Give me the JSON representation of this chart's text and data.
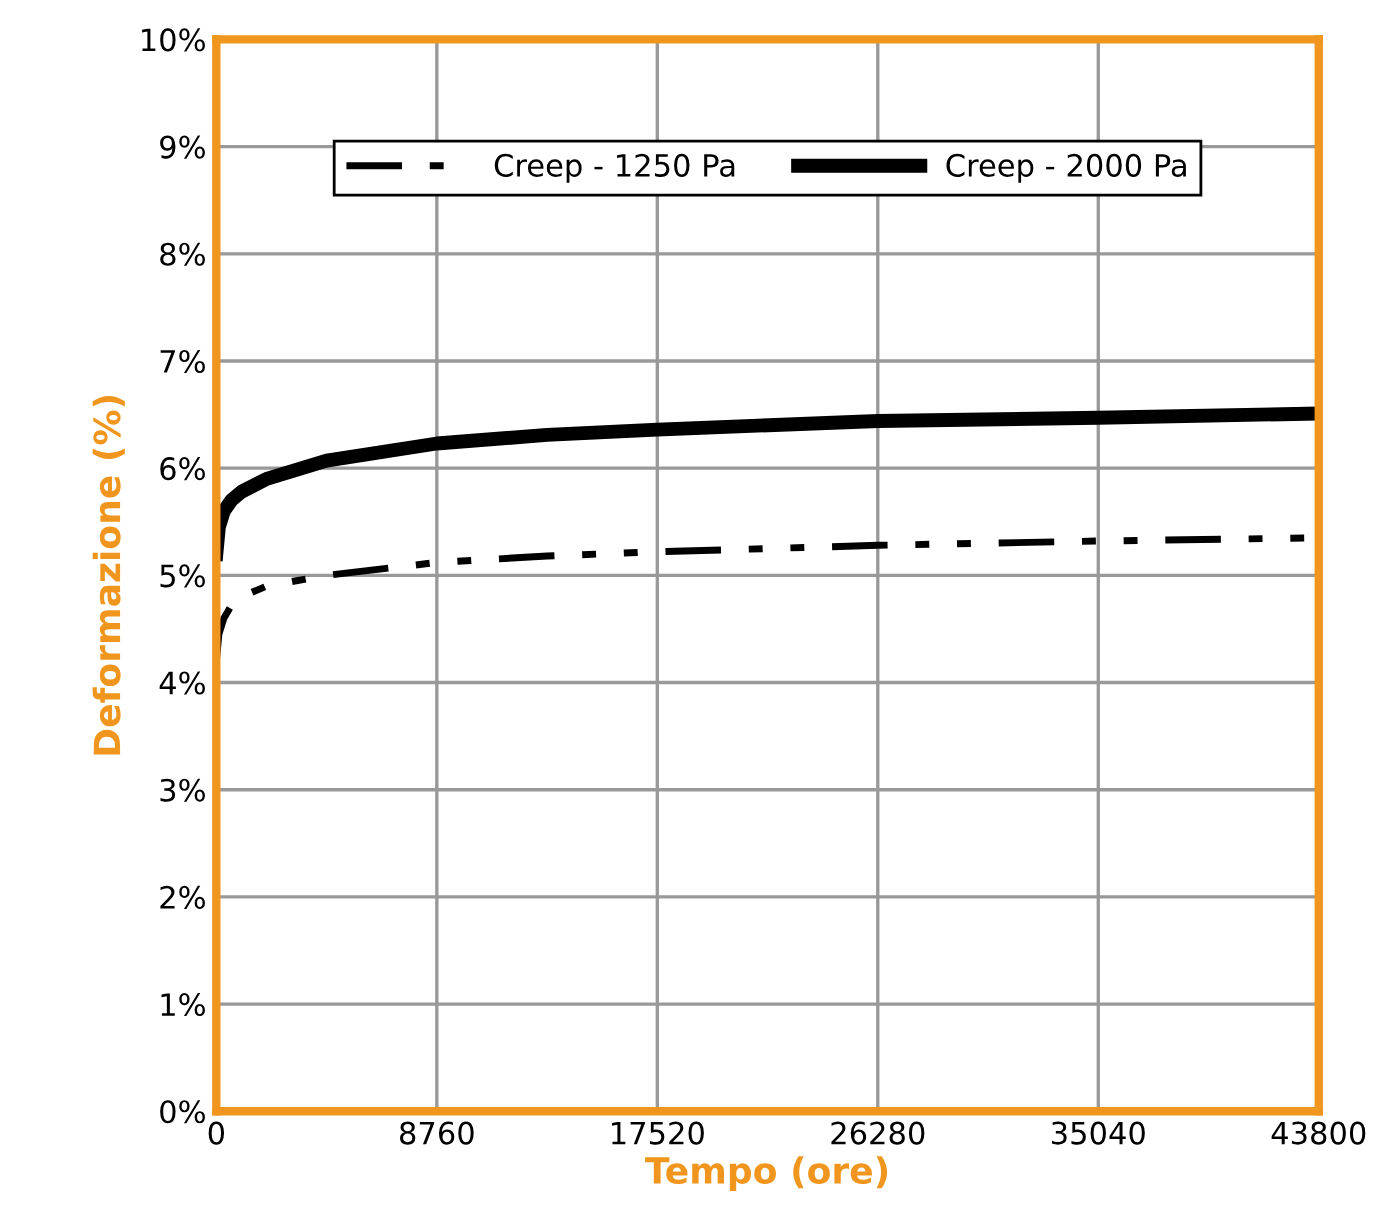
{
  "chart_data": {
    "type": "line",
    "xlabel": "Tempo (ore)",
    "ylabel": "Deformazione (%)",
    "xlim": [
      0,
      43800
    ],
    "xticks": [
      0,
      8760,
      17520,
      26280,
      35040,
      43800
    ],
    "ylim": [
      0,
      10
    ],
    "yticks": [
      {
        "value": 0,
        "label": "0%"
      },
      {
        "value": 1,
        "label": "1%"
      },
      {
        "value": 2,
        "label": "2%"
      },
      {
        "value": 3,
        "label": "3%"
      },
      {
        "value": 4,
        "label": "4%"
      },
      {
        "value": 5,
        "label": "5%"
      },
      {
        "value": 6,
        "label": "6%"
      },
      {
        "value": 7,
        "label": "7%"
      },
      {
        "value": 8,
        "label": "8%"
      },
      {
        "value": 9,
        "label": "9%"
      },
      {
        "value": 10,
        "label": "10%"
      }
    ],
    "grid": true,
    "legend": "top",
    "marker": "none",
    "series": [
      {
        "name": "Creep - 1250 Pa",
        "color": "#000000",
        "line_style": "dashed",
        "x": [
          0,
          100,
          300,
          600,
          1000,
          2000,
          4380,
          8760,
          13140,
          17520,
          26280,
          35040,
          43800
        ],
        "values": [
          4.2,
          4.45,
          4.6,
          4.72,
          4.8,
          4.9,
          5.0,
          5.12,
          5.18,
          5.22,
          5.28,
          5.32,
          5.35
        ]
      },
      {
        "name": "Creep - 2000 Pa",
        "color": "#000000",
        "line_style": "solid",
        "x": [
          0,
          100,
          300,
          600,
          1000,
          2000,
          4380,
          8760,
          13140,
          17520,
          26280,
          35040,
          43800
        ],
        "values": [
          5.2,
          5.45,
          5.6,
          5.7,
          5.78,
          5.9,
          6.07,
          6.23,
          6.31,
          6.36,
          6.44,
          6.47,
          6.51
        ]
      }
    ]
  }
}
